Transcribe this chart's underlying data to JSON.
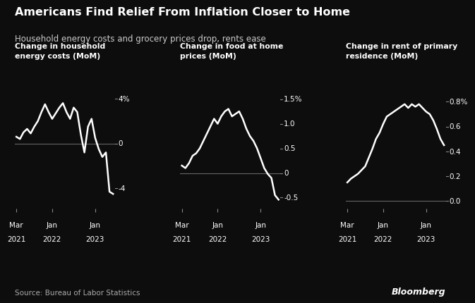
{
  "title": "Americans Find Relief From Inflation Closer to Home",
  "subtitle": "Household energy costs and grocery prices drop, rents ease",
  "source": "Source: Bureau of Labor Statistics",
  "background_color": "#0d0d0d",
  "text_color": "#ffffff",
  "line_color": "#ffffff",
  "zero_line_color": "#666666",
  "tick_color": "#888888",
  "panel1": {
    "title": "Change in household\nenergy costs (MoM)",
    "yticks": [
      4,
      0,
      -4
    ],
    "ytick_labels": [
      "4%",
      "0",
      "-4"
    ],
    "ylim": [
      -5.8,
      5.5
    ],
    "data": [
      0.6,
      0.4,
      1.0,
      1.3,
      0.9,
      1.5,
      2.0,
      2.8,
      3.5,
      2.8,
      2.2,
      2.7,
      3.2,
      3.6,
      2.8,
      2.2,
      3.2,
      2.8,
      0.8,
      -0.8,
      1.5,
      2.2,
      0.5,
      -0.5,
      -1.2,
      -0.8,
      -4.3,
      -4.5
    ]
  },
  "panel2": {
    "title": "Change in food at home\nprices (MoM)",
    "yticks": [
      1.5,
      1.0,
      0.5,
      0,
      -0.5
    ],
    "ytick_labels": [
      "1.5%",
      "1.0",
      "0.5",
      "0",
      "-0.5"
    ],
    "ylim": [
      -0.72,
      1.85
    ],
    "data": [
      0.15,
      0.1,
      0.2,
      0.35,
      0.4,
      0.5,
      0.65,
      0.8,
      0.95,
      1.1,
      1.0,
      1.15,
      1.25,
      1.3,
      1.15,
      1.2,
      1.25,
      1.1,
      0.9,
      0.75,
      0.65,
      0.5,
      0.3,
      0.1,
      -0.02,
      -0.1,
      -0.45,
      -0.54
    ]
  },
  "panel3": {
    "title": "Change in rent of primary\nresidence (MoM)",
    "yticks": [
      0.8,
      0.6,
      0.4,
      0.2,
      0.0
    ],
    "ytick_labels": [
      "0.8%",
      "0.6",
      "0.4",
      "0.2",
      "0.0"
    ],
    "ylim": [
      -0.06,
      0.96
    ],
    "data": [
      0.15,
      0.18,
      0.2,
      0.22,
      0.25,
      0.28,
      0.35,
      0.42,
      0.5,
      0.55,
      0.62,
      0.68,
      0.7,
      0.72,
      0.74,
      0.76,
      0.78,
      0.75,
      0.78,
      0.76,
      0.78,
      0.75,
      0.72,
      0.7,
      0.65,
      0.58,
      0.5,
      0.45
    ]
  },
  "n_points": 28,
  "xtick_positions": [
    0,
    10,
    22
  ],
  "xtick_labels": [
    [
      "Mar",
      "2021"
    ],
    [
      "Jan",
      "2022"
    ],
    [
      "Jan",
      "2023"
    ]
  ],
  "title_fontsize": 11.5,
  "subtitle_fontsize": 8.5,
  "panel_title_fontsize": 7.8,
  "tick_fontsize": 7.5,
  "source_fontsize": 7.5,
  "bloomberg_fontsize": 9
}
